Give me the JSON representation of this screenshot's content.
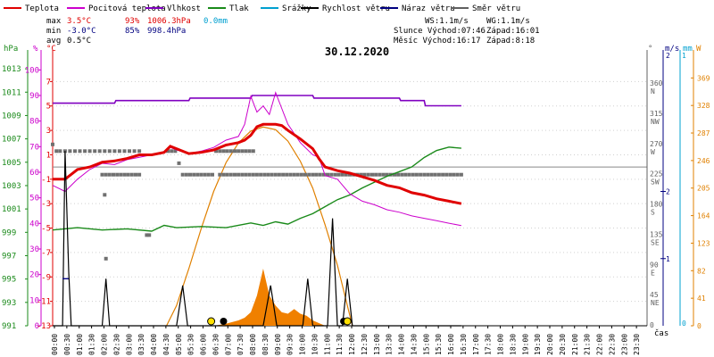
{
  "chart_data": {
    "type": "line",
    "title": "30.12.2020",
    "legend": [
      {
        "name": "Teplota",
        "color": "#e00000"
      },
      {
        "name": "Pocitová teplota",
        "color": "#cc00cc"
      },
      {
        "name": "Vlhkost",
        "color": "#8000c0"
      },
      {
        "name": "Tlak",
        "color": "#1a8a1a"
      },
      {
        "name": "Srážky",
        "color": "#00a0d0"
      },
      {
        "name": "Rychlost větru",
        "color": "#000000"
      },
      {
        "name": "Náraz větru",
        "color": "#000080"
      },
      {
        "name": "Směr větru",
        "color": "#606060"
      }
    ],
    "stats": {
      "max_label": "max",
      "min_label": "min",
      "avg_label": "avg",
      "max_temp": "3.5°C",
      "max_hum": "93%",
      "max_press": "1006.3hPa",
      "min_temp": "-3.0°C",
      "min_hum": "85%",
      "min_press": "998.4hPa",
      "avg_temp": "0.5°C",
      "rain": "0.0mm"
    },
    "info": {
      "ws": "WS:1.1m/s",
      "wg": "WG:1.1m/s",
      "sun_rise": "Slunce Východ:07:46",
      "sun_set": "Západ:16:01",
      "moon_rise": "Měsíc  Východ:16:17",
      "moon_set": "Západ:8:18"
    },
    "axis_units": {
      "press": "hPa",
      "hum": "%",
      "temp": "°C",
      "dir": "°",
      "wind": "m/s",
      "rain": "mm",
      "solar": "W",
      "time": "čas"
    },
    "x_ticks": [
      "00:00",
      "00:30",
      "01:00",
      "01:30",
      "02:00",
      "02:30",
      "03:00",
      "03:30",
      "04:00",
      "04:30",
      "05:00",
      "05:30",
      "06:00",
      "06:30",
      "07:00",
      "07:30",
      "08:00",
      "08:30",
      "09:00",
      "09:30",
      "10:00",
      "10:30",
      "11:00",
      "11:30",
      "12:00",
      "12:30",
      "13:00",
      "13:30",
      "14:00",
      "14:30",
      "15:00",
      "15:30",
      "16:00",
      "16:30",
      "17:00",
      "17:30",
      "18:00",
      "18:30",
      "19:00",
      "19:30",
      "20:00",
      "20:30",
      "21:00",
      "21:30",
      "22:00",
      "22:30",
      "23:00",
      "23:30"
    ],
    "press_ticks": [
      1013,
      1011,
      1009,
      1007,
      1005,
      1003,
      1001,
      999,
      997,
      995,
      993,
      991
    ],
    "press_range": [
      991,
      1014
    ],
    "hum_ticks": [
      100,
      90,
      80,
      70,
      60,
      50,
      40,
      30,
      20,
      10,
      0
    ],
    "temp_ticks": [
      7,
      5,
      3,
      1,
      -1,
      -3,
      -5,
      -7,
      -9,
      -11,
      -13
    ],
    "temp_range": [
      -13,
      9
    ],
    "dir_ticks": [
      {
        "v": 360,
        "lbl": "N"
      },
      {
        "v": 315,
        "lbl": "NW"
      },
      {
        "v": 270,
        "lbl": "W"
      },
      {
        "v": 225,
        "lbl": "SW"
      },
      {
        "v": 180,
        "lbl": "S"
      },
      {
        "v": 135,
        "lbl": "SE"
      },
      {
        "v": 90,
        "lbl": "E"
      },
      {
        "v": 45,
        "lbl": "NE"
      },
      {
        "v": 0,
        "lbl": ""
      }
    ],
    "wind_ticks": [
      {
        "v": 2,
        "lbl": "2"
      },
      {
        "v": 1,
        "lbl": "1"
      }
    ],
    "rain_ticks": [
      {
        "v": 1,
        "lbl": "1"
      }
    ],
    "solar_ticks": [
      369,
      328,
      287,
      246,
      205,
      164,
      123,
      82,
      41,
      0
    ],
    "solar_range": [
      0,
      400
    ],
    "temperature": [
      [
        0,
        -1.0
      ],
      [
        1,
        -1.0
      ],
      [
        2,
        -0.2
      ],
      [
        3,
        0.0
      ],
      [
        4,
        0.4
      ],
      [
        5,
        0.5
      ],
      [
        6,
        0.7
      ],
      [
        7,
        1.0
      ],
      [
        8,
        1.0
      ],
      [
        9,
        1.2
      ],
      [
        9.5,
        1.7
      ],
      [
        10,
        1.5
      ],
      [
        11,
        1.1
      ],
      [
        12,
        1.2
      ],
      [
        13,
        1.4
      ],
      [
        14,
        1.8
      ],
      [
        15,
        2.0
      ],
      [
        15.5,
        2.2
      ],
      [
        16,
        2.6
      ],
      [
        16.5,
        3.3
      ],
      [
        17,
        3.5
      ],
      [
        18,
        3.5
      ],
      [
        18.5,
        3.4
      ],
      [
        19,
        3.0
      ],
      [
        20,
        2.3
      ],
      [
        21,
        1.5
      ],
      [
        21.5,
        0.7
      ],
      [
        22,
        0.0
      ],
      [
        23,
        -0.3
      ],
      [
        24,
        -0.5
      ],
      [
        25,
        -0.8
      ],
      [
        26,
        -1.1
      ],
      [
        27,
        -1.5
      ],
      [
        28,
        -1.7
      ],
      [
        29,
        -2.1
      ],
      [
        30,
        -2.3
      ],
      [
        31,
        -2.6
      ],
      [
        32,
        -2.8
      ],
      [
        33,
        -3.0
      ]
    ],
    "feels_like": [
      [
        0,
        -1.5
      ],
      [
        1,
        -2.0
      ],
      [
        2,
        -1.0
      ],
      [
        3,
        -0.2
      ],
      [
        4,
        0.3
      ],
      [
        5,
        0.2
      ],
      [
        6,
        0.6
      ],
      [
        7,
        0.8
      ],
      [
        8,
        1.0
      ],
      [
        9,
        1.2
      ],
      [
        9.5,
        1.6
      ],
      [
        10,
        1.4
      ],
      [
        11,
        1.1
      ],
      [
        12,
        1.3
      ],
      [
        13,
        1.6
      ],
      [
        14,
        2.2
      ],
      [
        15,
        2.5
      ],
      [
        15.5,
        3.5
      ],
      [
        16,
        5.8
      ],
      [
        16.5,
        4.5
      ],
      [
        17,
        5.0
      ],
      [
        17.5,
        4.3
      ],
      [
        18,
        6.1
      ],
      [
        18.5,
        4.8
      ],
      [
        19,
        3.5
      ],
      [
        20,
        2.0
      ],
      [
        21,
        1.0
      ],
      [
        21.5,
        0.8
      ],
      [
        22,
        -0.7
      ],
      [
        23,
        -1.0
      ],
      [
        24,
        -2.2
      ],
      [
        25,
        -2.8
      ],
      [
        26,
        -3.1
      ],
      [
        27,
        -3.5
      ],
      [
        28,
        -3.7
      ],
      [
        29,
        -4.0
      ],
      [
        30,
        -4.2
      ],
      [
        31,
        -4.4
      ],
      [
        32,
        -4.6
      ],
      [
        33,
        -4.8
      ]
    ],
    "humidity": [
      [
        0,
        87
      ],
      [
        5,
        87
      ],
      [
        5.1,
        88
      ],
      [
        11,
        88
      ],
      [
        11.1,
        89
      ],
      [
        16,
        89
      ],
      [
        16.1,
        90
      ],
      [
        21,
        90
      ],
      [
        21.1,
        89
      ],
      [
        28,
        89
      ],
      [
        28.1,
        88
      ],
      [
        30,
        88
      ],
      [
        30.1,
        86
      ],
      [
        33,
        86
      ]
    ],
    "pressure": [
      [
        0,
        999.2
      ],
      [
        2,
        999.4
      ],
      [
        4,
        999.2
      ],
      [
        6,
        999.3
      ],
      [
        8,
        999.1
      ],
      [
        9,
        999.6
      ],
      [
        10,
        999.4
      ],
      [
        12,
        999.5
      ],
      [
        14,
        999.4
      ],
      [
        16,
        999.8
      ],
      [
        17,
        999.6
      ],
      [
        18,
        999.9
      ],
      [
        19,
        999.7
      ],
      [
        20,
        1000.2
      ],
      [
        21,
        1000.6
      ],
      [
        22,
        1001.2
      ],
      [
        23,
        1001.8
      ],
      [
        24,
        1002.2
      ],
      [
        25,
        1002.8
      ],
      [
        26,
        1003.3
      ],
      [
        27,
        1003.8
      ],
      [
        28,
        1004.2
      ],
      [
        29,
        1004.6
      ],
      [
        30,
        1005.4
      ],
      [
        31,
        1006.0
      ],
      [
        32,
        1006.3
      ],
      [
        33,
        1006.2
      ]
    ],
    "wind_speed": [
      [
        0,
        0
      ],
      [
        0.8,
        0
      ],
      [
        1.0,
        2.6
      ],
      [
        1.3,
        0.8
      ],
      [
        1.5,
        0
      ],
      [
        4,
        0
      ],
      [
        4.3,
        0.7
      ],
      [
        4.6,
        0
      ],
      [
        10,
        0
      ],
      [
        10.5,
        0.6
      ],
      [
        10.9,
        0
      ],
      [
        17,
        0
      ],
      [
        17.6,
        0.6
      ],
      [
        18.1,
        0
      ],
      [
        20.2,
        0
      ],
      [
        20.6,
        0.7
      ],
      [
        21.0,
        0
      ],
      [
        22.2,
        0
      ],
      [
        22.6,
        1.6
      ],
      [
        23.0,
        0
      ],
      [
        23.4,
        0
      ],
      [
        23.8,
        0.7
      ],
      [
        24.2,
        0
      ],
      [
        33,
        0
      ]
    ],
    "wind_gust": [
      [
        0.8,
        0.7
      ],
      [
        1.3,
        0.7
      ]
    ],
    "wind_dir": [
      [
        0,
        270
      ],
      [
        0.3,
        260
      ],
      [
        0.6,
        260
      ],
      [
        1.0,
        260
      ],
      [
        1.4,
        260
      ],
      [
        1.8,
        260
      ],
      [
        2.2,
        260
      ],
      [
        2.6,
        260
      ],
      [
        3.0,
        260
      ],
      [
        3.4,
        260
      ],
      [
        3.8,
        260
      ],
      [
        4.2,
        260
      ],
      [
        4.6,
        260
      ],
      [
        5.0,
        260
      ],
      [
        5.4,
        260
      ],
      [
        5.8,
        260
      ],
      [
        6.2,
        260
      ],
      [
        6.6,
        260
      ],
      [
        7.0,
        260
      ],
      [
        4.0,
        225
      ],
      [
        4.3,
        225
      ],
      [
        4.6,
        225
      ],
      [
        4.9,
        225
      ],
      [
        5.2,
        225
      ],
      [
        5.5,
        225
      ],
      [
        5.8,
        225
      ],
      [
        6.1,
        225
      ],
      [
        6.4,
        225
      ],
      [
        6.7,
        225
      ],
      [
        7.0,
        225
      ],
      [
        4.2,
        195
      ],
      [
        9.3,
        260
      ],
      [
        9.6,
        260
      ],
      [
        9.9,
        260
      ],
      [
        10.2,
        242
      ],
      [
        10.5,
        225
      ],
      [
        10.8,
        225
      ],
      [
        11.1,
        225
      ],
      [
        11.4,
        225
      ],
      [
        11.7,
        225
      ],
      [
        12.0,
        225
      ],
      [
        12.3,
        225
      ],
      [
        12.6,
        225
      ],
      [
        12.9,
        225
      ],
      [
        13.2,
        260
      ],
      [
        13.5,
        260
      ],
      [
        13.8,
        260
      ],
      [
        14.1,
        260
      ],
      [
        14.4,
        260
      ],
      [
        14.7,
        260
      ],
      [
        15.0,
        260
      ],
      [
        15.3,
        260
      ],
      [
        15.6,
        260
      ],
      [
        15.9,
        260
      ],
      [
        16.2,
        260
      ],
      [
        13.5,
        225
      ],
      [
        13.8,
        225
      ],
      [
        14.1,
        225
      ],
      [
        14.4,
        225
      ],
      [
        14.7,
        225
      ],
      [
        15.0,
        225
      ],
      [
        15.3,
        225
      ],
      [
        15.6,
        225
      ],
      [
        15.9,
        225
      ],
      [
        16.2,
        225
      ],
      [
        16.5,
        225
      ],
      [
        16.8,
        225
      ],
      [
        17.1,
        225
      ],
      [
        17.4,
        225
      ],
      [
        17.7,
        225
      ],
      [
        18.0,
        225
      ],
      [
        18.3,
        225
      ],
      [
        18.6,
        225
      ],
      [
        18.9,
        225
      ],
      [
        19.2,
        225
      ],
      [
        19.5,
        225
      ],
      [
        19.8,
        225
      ],
      [
        20.1,
        225
      ],
      [
        20.4,
        225
      ],
      [
        20.7,
        225
      ],
      [
        21.0,
        225
      ],
      [
        21.3,
        225
      ],
      [
        21.6,
        225
      ],
      [
        21.9,
        225
      ],
      [
        22.2,
        225
      ],
      [
        22.5,
        225
      ],
      [
        22.8,
        225
      ],
      [
        23.1,
        225
      ],
      [
        23.4,
        225
      ],
      [
        23.7,
        225
      ],
      [
        24.0,
        225
      ],
      [
        24.3,
        225
      ],
      [
        24.6,
        225
      ],
      [
        24.9,
        225
      ],
      [
        25.2,
        225
      ],
      [
        25.5,
        225
      ],
      [
        25.8,
        225
      ],
      [
        26.1,
        225
      ],
      [
        26.4,
        225
      ],
      [
        26.7,
        225
      ],
      [
        27.0,
        225
      ],
      [
        27.3,
        225
      ],
      [
        27.6,
        225
      ],
      [
        27.9,
        225
      ],
      [
        28.2,
        225
      ],
      [
        28.5,
        225
      ],
      [
        28.8,
        225
      ],
      [
        29.1,
        225
      ],
      [
        29.4,
        225
      ],
      [
        29.7,
        225
      ],
      [
        30.0,
        225
      ],
      [
        30.3,
        225
      ],
      [
        30.6,
        225
      ],
      [
        30.9,
        225
      ],
      [
        31.2,
        225
      ],
      [
        31.5,
        225
      ],
      [
        31.8,
        225
      ],
      [
        32.1,
        225
      ],
      [
        32.4,
        225
      ],
      [
        32.7,
        225
      ],
      [
        33.0,
        225
      ],
      [
        7.6,
        135
      ],
      [
        7.8,
        135
      ],
      [
        4.3,
        100
      ]
    ],
    "solar": [
      [
        9.2,
        0
      ],
      [
        10,
        30
      ],
      [
        11,
        85
      ],
      [
        12,
        145
      ],
      [
        13,
        200
      ],
      [
        14,
        243
      ],
      [
        15,
        272
      ],
      [
        16,
        290
      ],
      [
        17,
        296
      ],
      [
        18,
        292
      ],
      [
        19,
        275
      ],
      [
        20,
        245
      ],
      [
        21,
        205
      ],
      [
        22,
        150
      ],
      [
        23,
        90
      ],
      [
        23.8,
        30
      ],
      [
        24.2,
        0
      ]
    ],
    "solar_actual": [
      [
        13,
        0
      ],
      [
        14,
        3
      ],
      [
        15,
        8
      ],
      [
        15.5,
        12
      ],
      [
        16,
        20
      ],
      [
        16.5,
        45
      ],
      [
        17,
        85
      ],
      [
        17.5,
        45
      ],
      [
        18,
        30
      ],
      [
        18.5,
        20
      ],
      [
        19,
        18
      ],
      [
        19.5,
        25
      ],
      [
        20,
        18
      ],
      [
        20.5,
        15
      ],
      [
        21,
        8
      ],
      [
        21.5,
        4
      ],
      [
        22,
        0
      ]
    ],
    "markers": [
      {
        "x": 12.8,
        "type": "sunrise"
      },
      {
        "x": 13.8,
        "type": "moonset"
      },
      {
        "x": 23.5,
        "type": "moonrise"
      },
      {
        "x": 23.8,
        "type": "sunset"
      }
    ]
  }
}
